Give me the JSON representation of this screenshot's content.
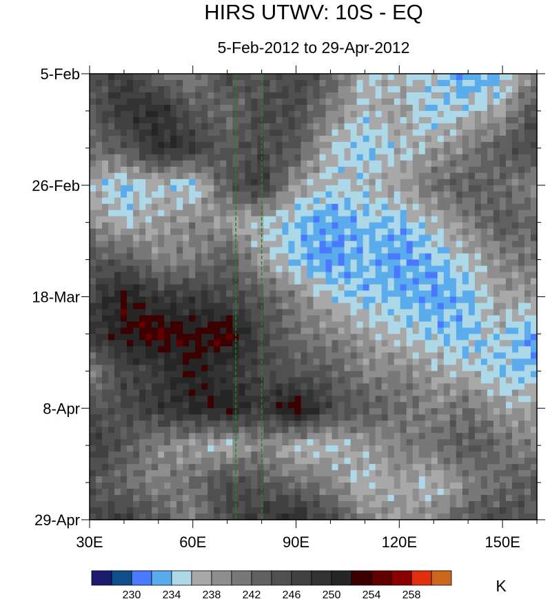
{
  "chart_data": {
    "type": "heatmap",
    "title": "HIRS UTWV: 10S - EQ",
    "subtitle": "5-Feb-2012 to 29-Apr-2012",
    "xlabel": "",
    "ylabel": "",
    "xlim": [
      30,
      160
    ],
    "ylim_days": [
      0,
      84
    ],
    "x_ticks": [
      {
        "v": 30,
        "label": "30E"
      },
      {
        "v": 60,
        "label": "60E"
      },
      {
        "v": 90,
        "label": "90E"
      },
      {
        "v": 120,
        "label": "120E"
      },
      {
        "v": 150,
        "label": "150E"
      }
    ],
    "y_ticks": [
      {
        "v": 0,
        "label": "5-Feb"
      },
      {
        "v": 21,
        "label": "26-Feb"
      },
      {
        "v": 42,
        "label": "18-Mar"
      },
      {
        "v": 63,
        "label": "8-Apr"
      },
      {
        "v": 84,
        "label": "29-Apr"
      }
    ],
    "reference_lines_lon": [
      72.5,
      80
    ],
    "reference_line_color": "#1a8a1a",
    "lon": [
      30,
      40,
      50,
      60,
      70,
      80,
      90,
      100,
      110,
      120,
      130,
      140,
      150,
      160
    ],
    "day": [
      0,
      7,
      14,
      21,
      28,
      35,
      42,
      49,
      56,
      63,
      70,
      77,
      84
    ],
    "values": [
      [
        244,
        248,
        242,
        240,
        246,
        244,
        246,
        244,
        236,
        236,
        236,
        232,
        234,
        240
      ],
      [
        244,
        248,
        250,
        244,
        242,
        246,
        246,
        240,
        236,
        238,
        234,
        236,
        238,
        246
      ],
      [
        242,
        244,
        250,
        248,
        244,
        246,
        244,
        236,
        234,
        236,
        238,
        240,
        244,
        246
      ],
      [
        236,
        234,
        236,
        234,
        244,
        248,
        238,
        236,
        236,
        238,
        242,
        244,
        242,
        240
      ],
      [
        240,
        236,
        238,
        240,
        238,
        236,
        234,
        232,
        234,
        234,
        236,
        240,
        244,
        242
      ],
      [
        244,
        244,
        240,
        240,
        244,
        238,
        234,
        232,
        234,
        232,
        234,
        236,
        240,
        242
      ],
      [
        246,
        252,
        248,
        248,
        246,
        244,
        240,
        236,
        234,
        234,
        232,
        234,
        238,
        238
      ],
      [
        248,
        252,
        254,
        252,
        254,
        246,
        242,
        240,
        238,
        236,
        234,
        234,
        236,
        232
      ],
      [
        240,
        246,
        248,
        252,
        248,
        246,
        244,
        244,
        240,
        240,
        238,
        236,
        234,
        234
      ],
      [
        244,
        246,
        248,
        250,
        252,
        248,
        254,
        246,
        244,
        242,
        240,
        242,
        238,
        238
      ],
      [
        248,
        244,
        240,
        238,
        236,
        240,
        236,
        236,
        238,
        240,
        242,
        244,
        242,
        240
      ],
      [
        244,
        242,
        240,
        242,
        246,
        244,
        242,
        240,
        236,
        238,
        236,
        240,
        242,
        244
      ],
      [
        246,
        248,
        244,
        240,
        246,
        248,
        250,
        246,
        240,
        238,
        240,
        244,
        246,
        244
      ]
    ],
    "colorbar": {
      "levels": [
        228,
        230,
        232,
        234,
        236,
        238,
        240,
        242,
        244,
        246,
        248,
        250,
        252,
        254,
        256,
        258,
        260
      ],
      "tick_labels": [
        "230",
        "234",
        "238",
        "242",
        "246",
        "250",
        "254",
        "258"
      ],
      "colors": [
        "#1b1b6f",
        "#104e8b",
        "#4a78ff",
        "#5aacec",
        "#acd8e8",
        "#a8a8a8",
        "#8e8e8e",
        "#787878",
        "#606060",
        "#505050",
        "#414141",
        "#333333",
        "#262626",
        "#3c0000",
        "#620000",
        "#8b0000",
        "#e0300f",
        "#cd661d"
      ],
      "units": "K"
    }
  }
}
